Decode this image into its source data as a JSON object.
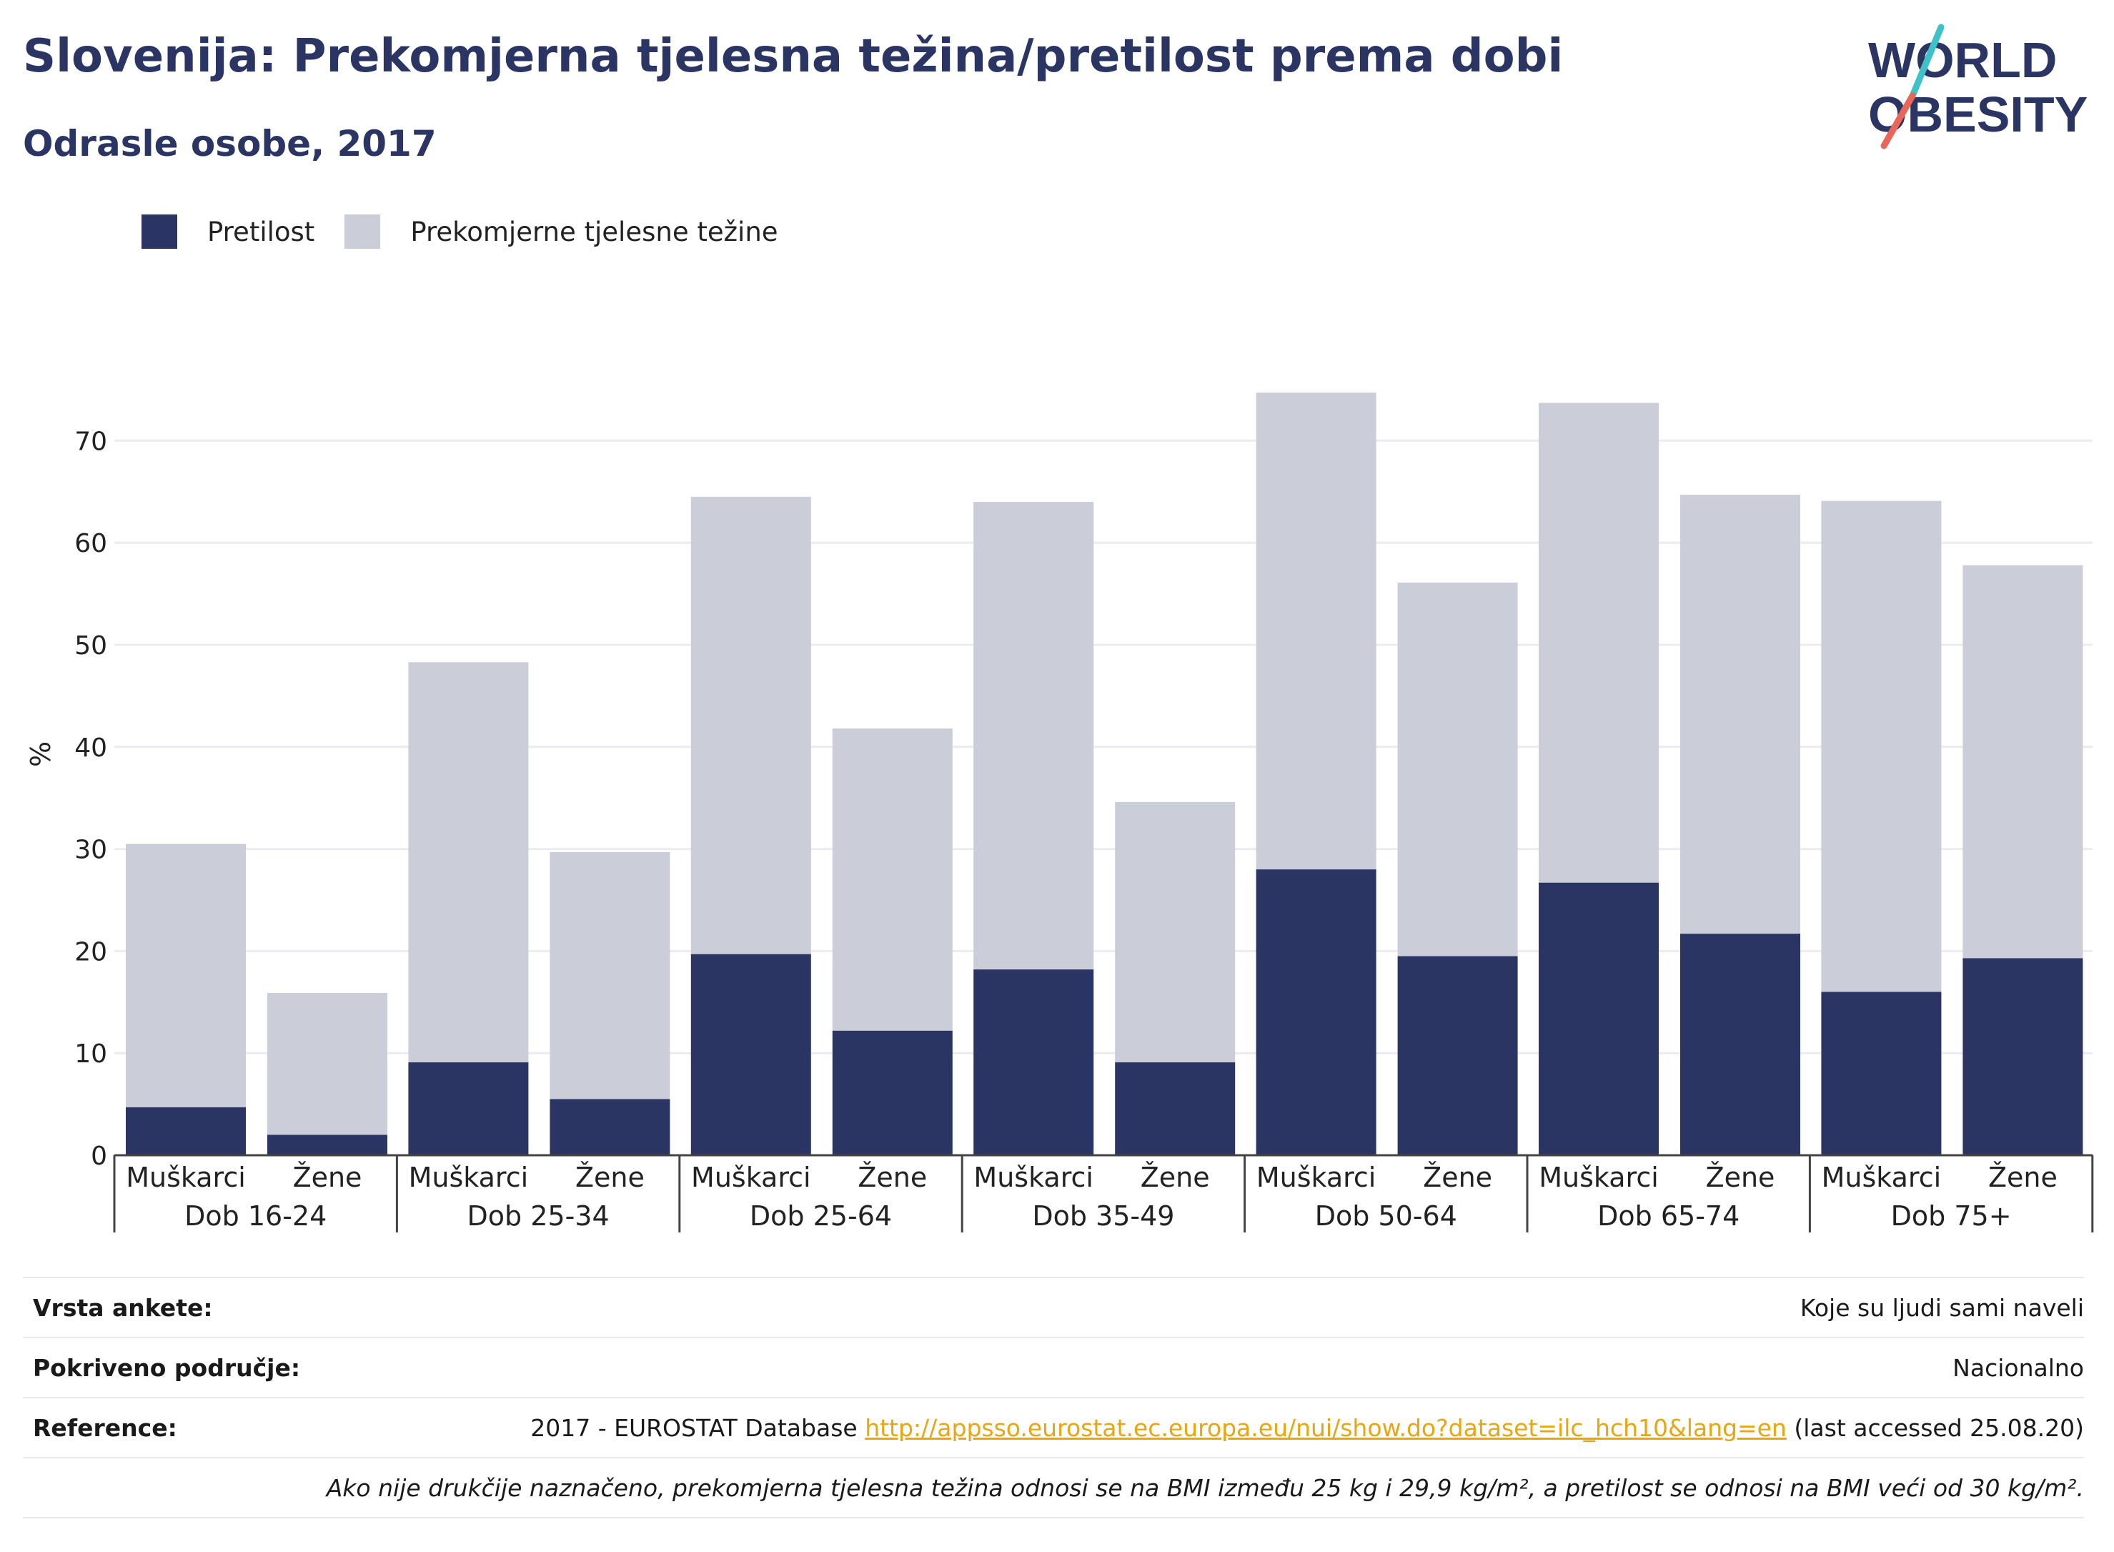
{
  "title": "Slovenija: Prekomjerna tjelesna težina/pretilost prema dobi",
  "subtitle": "Odrasle osobe, 2017",
  "logo": {
    "line1": "WORLD",
    "line2": "OBESITY"
  },
  "colors": {
    "obesity": "#2b3563",
    "overweight": "#cbcdd8",
    "accent_red": "#e8665a",
    "accent_teal": "#3fc1c9",
    "link": "#e8a712"
  },
  "chart_data": {
    "type": "bar",
    "stacked": true,
    "ylabel": "%",
    "ylim": [
      0,
      80
    ],
    "yticks": [
      0,
      10,
      20,
      30,
      40,
      50,
      60,
      70
    ],
    "grid": true,
    "legend_position": "top-left",
    "groups": [
      "Dob 16-24",
      "Dob 25-34",
      "Dob 25-64",
      "Dob 35-49",
      "Dob 50-64",
      "Dob 65-74",
      "Dob 75+"
    ],
    "subcategories": [
      "Muškarci",
      "Žene"
    ],
    "series": [
      {
        "name": "Pretilost",
        "color": "#2b3563",
        "values": [
          4.7,
          2.0,
          9.1,
          5.5,
          19.7,
          12.2,
          18.2,
          9.1,
          28.0,
          19.5,
          26.7,
          21.7,
          16.0,
          19.3
        ]
      },
      {
        "name": "Prekomjerne tjelesne težine",
        "color": "#cbcdd8",
        "values": [
          25.8,
          13.9,
          39.2,
          24.2,
          44.8,
          29.6,
          45.8,
          25.5,
          46.7,
          36.6,
          47.0,
          43.0,
          48.1,
          38.5
        ]
      }
    ]
  },
  "info": {
    "survey_label": "Vrsta ankete:",
    "survey_value": "Koje su ljudi sami naveli",
    "coverage_label": "Pokriveno područje:",
    "coverage_value": "Nacionalno",
    "reference_label": "Reference:",
    "reference_prefix": "2017 - EUROSTAT Database ",
    "reference_link": "http://appsso.eurostat.ec.europa.eu/nui/show.do?dataset=ilc_hch10&lang=en",
    "reference_suffix": " (last accessed 25.08.20)",
    "note": "Ako nije drukčije naznačeno, prekomjerna tjelesna težina odnosi se na BMI između 25 kg i 29,9 kg/m², a pretilost se odnosi na BMI veći od 30 kg/m²."
  }
}
